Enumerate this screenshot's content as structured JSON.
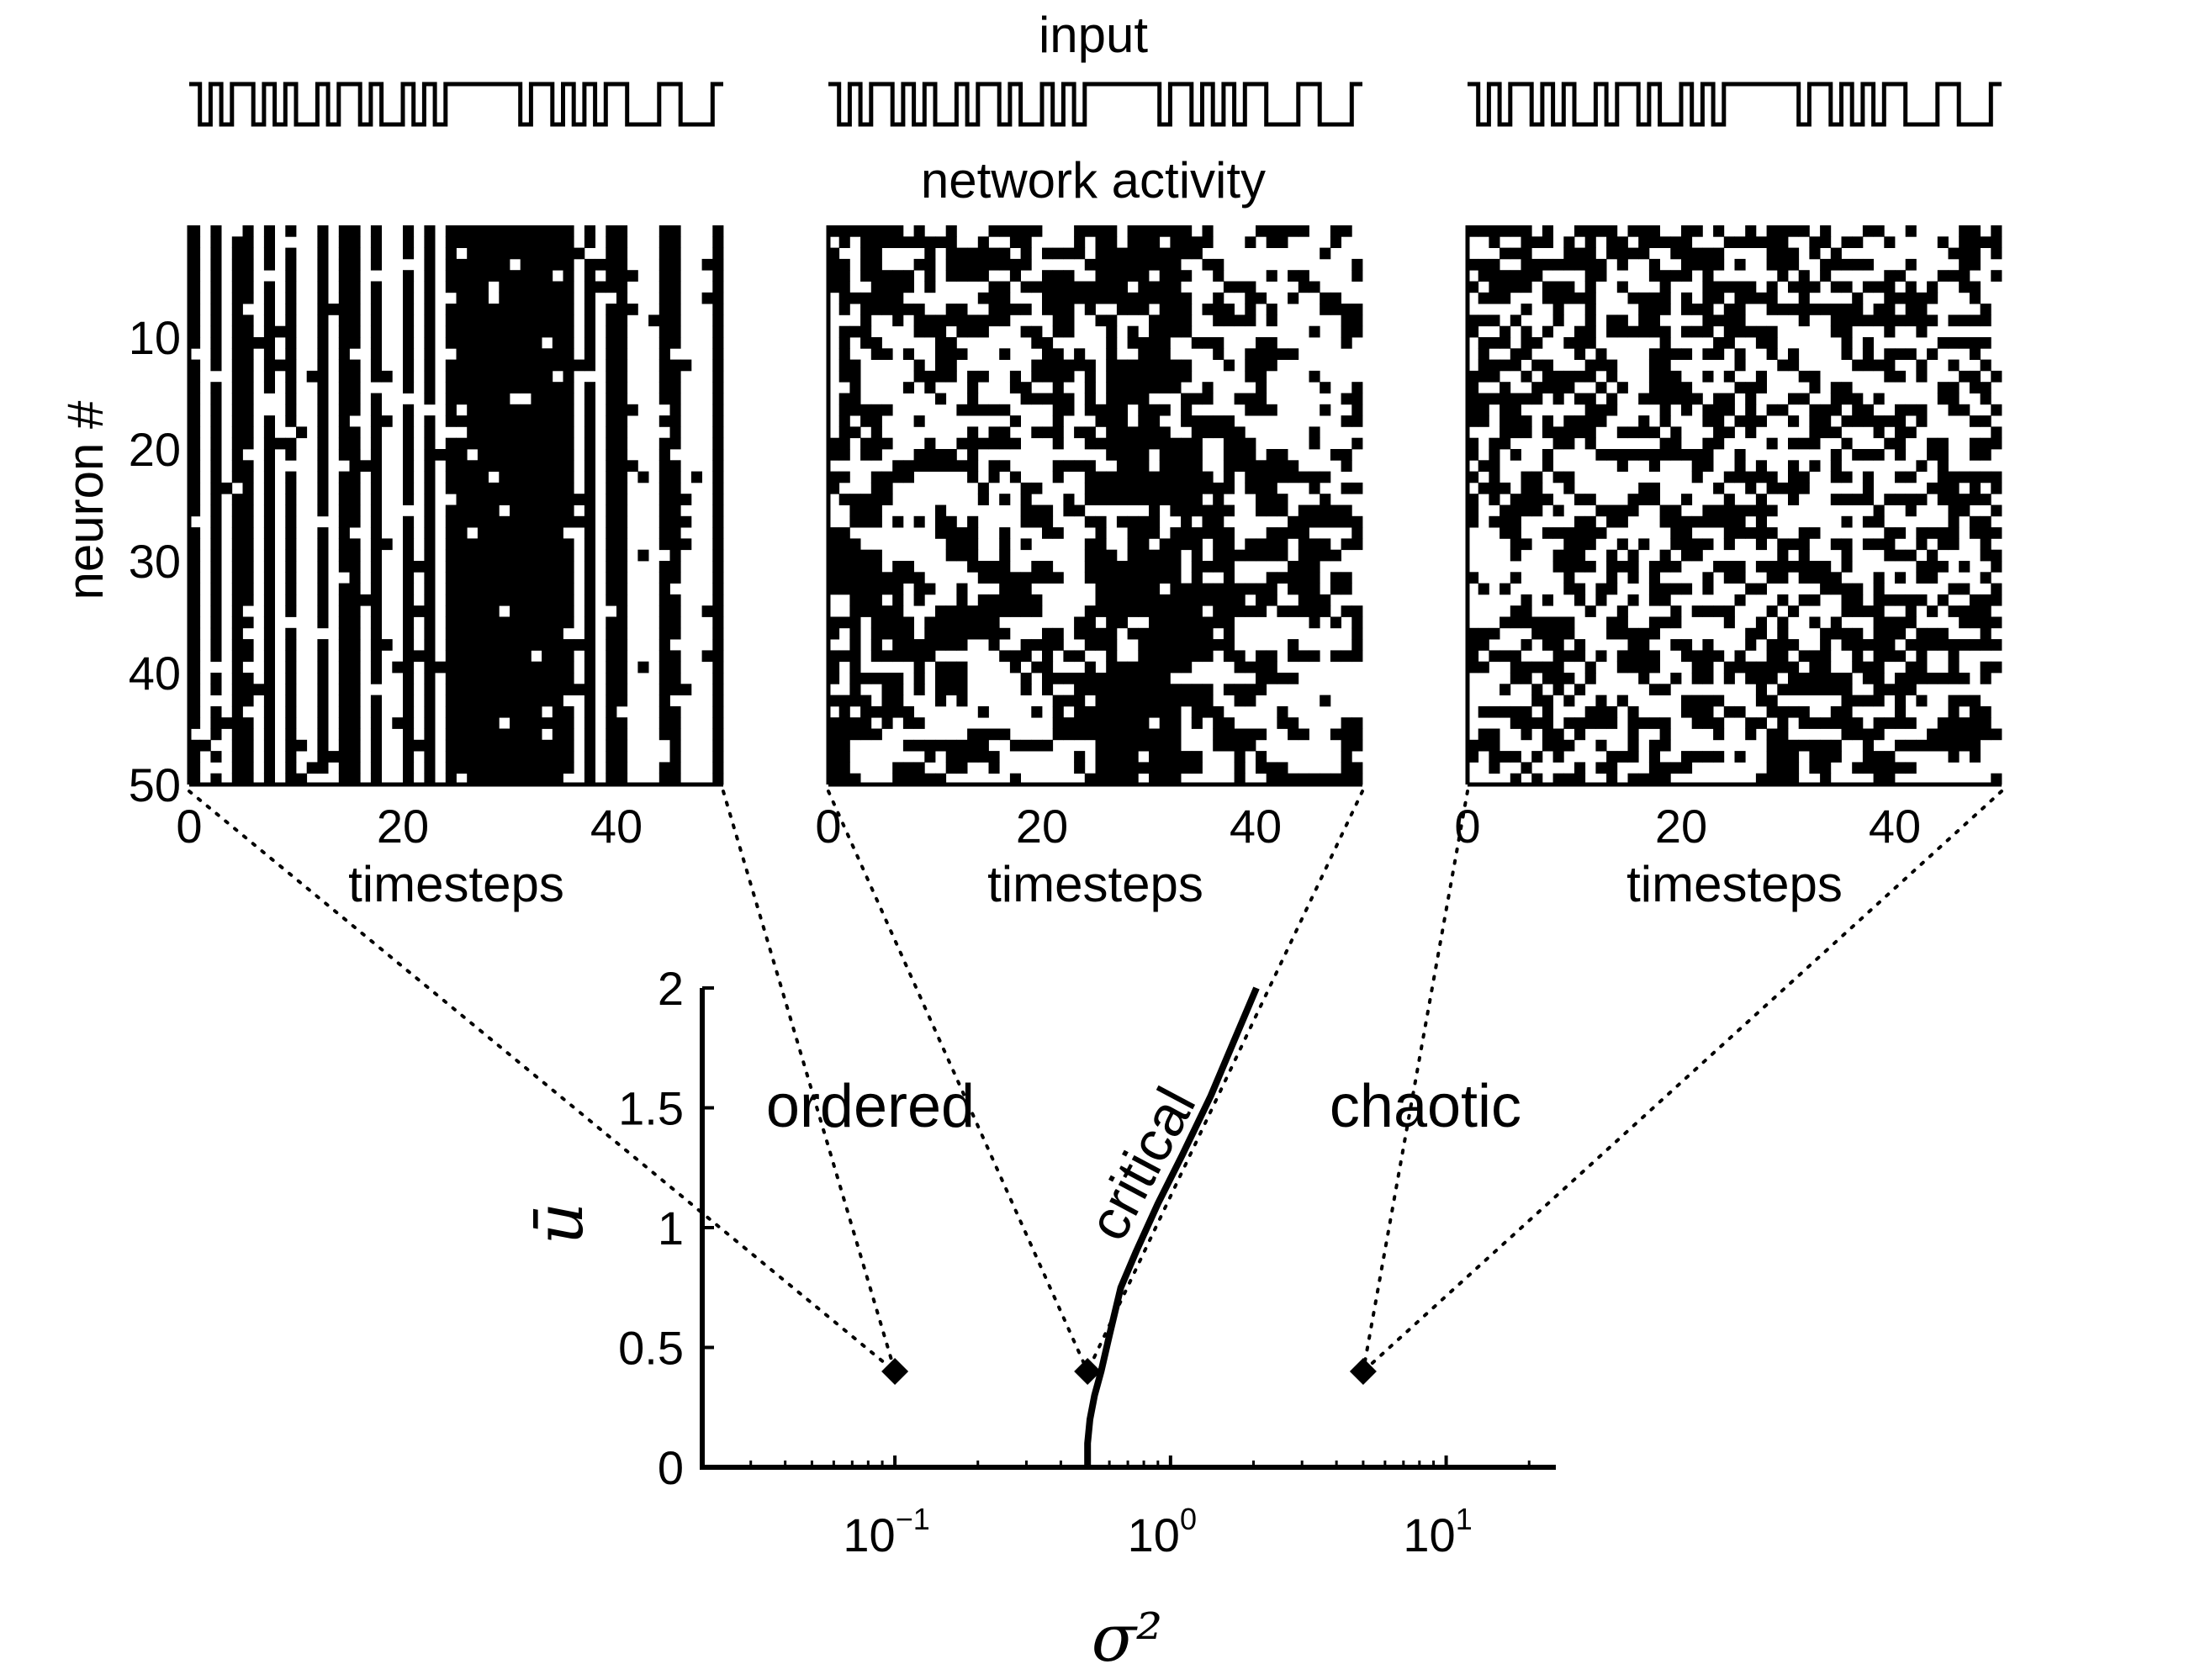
{
  "figure": {
    "input_label": "input",
    "activity_label": "network activity",
    "ylabel": "neuron #",
    "xlabel": "timesteps",
    "input_sequence": [
      1,
      0,
      1,
      0,
      1,
      1,
      0,
      1,
      0,
      1,
      0,
      0,
      1,
      0,
      1,
      1,
      0,
      1,
      0,
      0,
      1,
      0,
      1,
      0,
      1,
      1,
      1,
      1,
      1,
      1,
      1,
      0,
      1,
      1,
      0,
      1,
      0,
      1,
      0,
      1,
      1,
      0,
      0,
      0,
      1,
      1,
      0,
      0,
      0,
      1
    ],
    "raster_yticks": [
      10,
      20,
      30,
      40,
      50
    ],
    "raster_xticks": [
      0,
      20,
      40
    ],
    "neurons": 50,
    "timesteps": 50
  },
  "panels": [
    {
      "id": "ordered",
      "regime": "ordered",
      "sigma2": 0.1
    },
    {
      "id": "critical",
      "regime": "critical",
      "sigma2": 0.5
    },
    {
      "id": "chaotic",
      "regime": "chaotic",
      "sigma2": 5
    }
  ],
  "chart_data": {
    "type": "line",
    "xlabel": "σ²",
    "ylabel": "ū",
    "xscale": "log",
    "xlim": [
      0.02,
      25
    ],
    "ylim": [
      0,
      2
    ],
    "yticks": [
      0,
      0.5,
      1,
      1.5,
      2
    ],
    "yticklabels": [
      "0",
      "0.5",
      "1",
      "1.5",
      "2"
    ],
    "xticks": [
      0.1,
      1,
      10
    ],
    "xticklabels": [
      {
        "base": "10",
        "exp": "−1"
      },
      {
        "base": "10",
        "exp": "0"
      },
      {
        "base": "10",
        "exp": "1"
      }
    ],
    "regions": [
      "ordered",
      "critical",
      "chaotic"
    ],
    "series": [
      {
        "x": [
          0.5,
          0.5,
          0.51,
          0.53,
          0.56,
          0.6,
          0.66,
          0.75,
          0.9,
          1.1,
          1.4,
          1.7,
          2.05
        ],
        "y": [
          0,
          0.1,
          0.2,
          0.3,
          0.4,
          0.55,
          0.75,
          0.9,
          1.1,
          1.3,
          1.55,
          1.78,
          2.0
        ]
      }
    ],
    "points": [
      {
        "x": 0.1,
        "y": 0.4
      },
      {
        "x": 0.5,
        "y": 0.4
      },
      {
        "x": 5,
        "y": 0.4
      }
    ]
  }
}
